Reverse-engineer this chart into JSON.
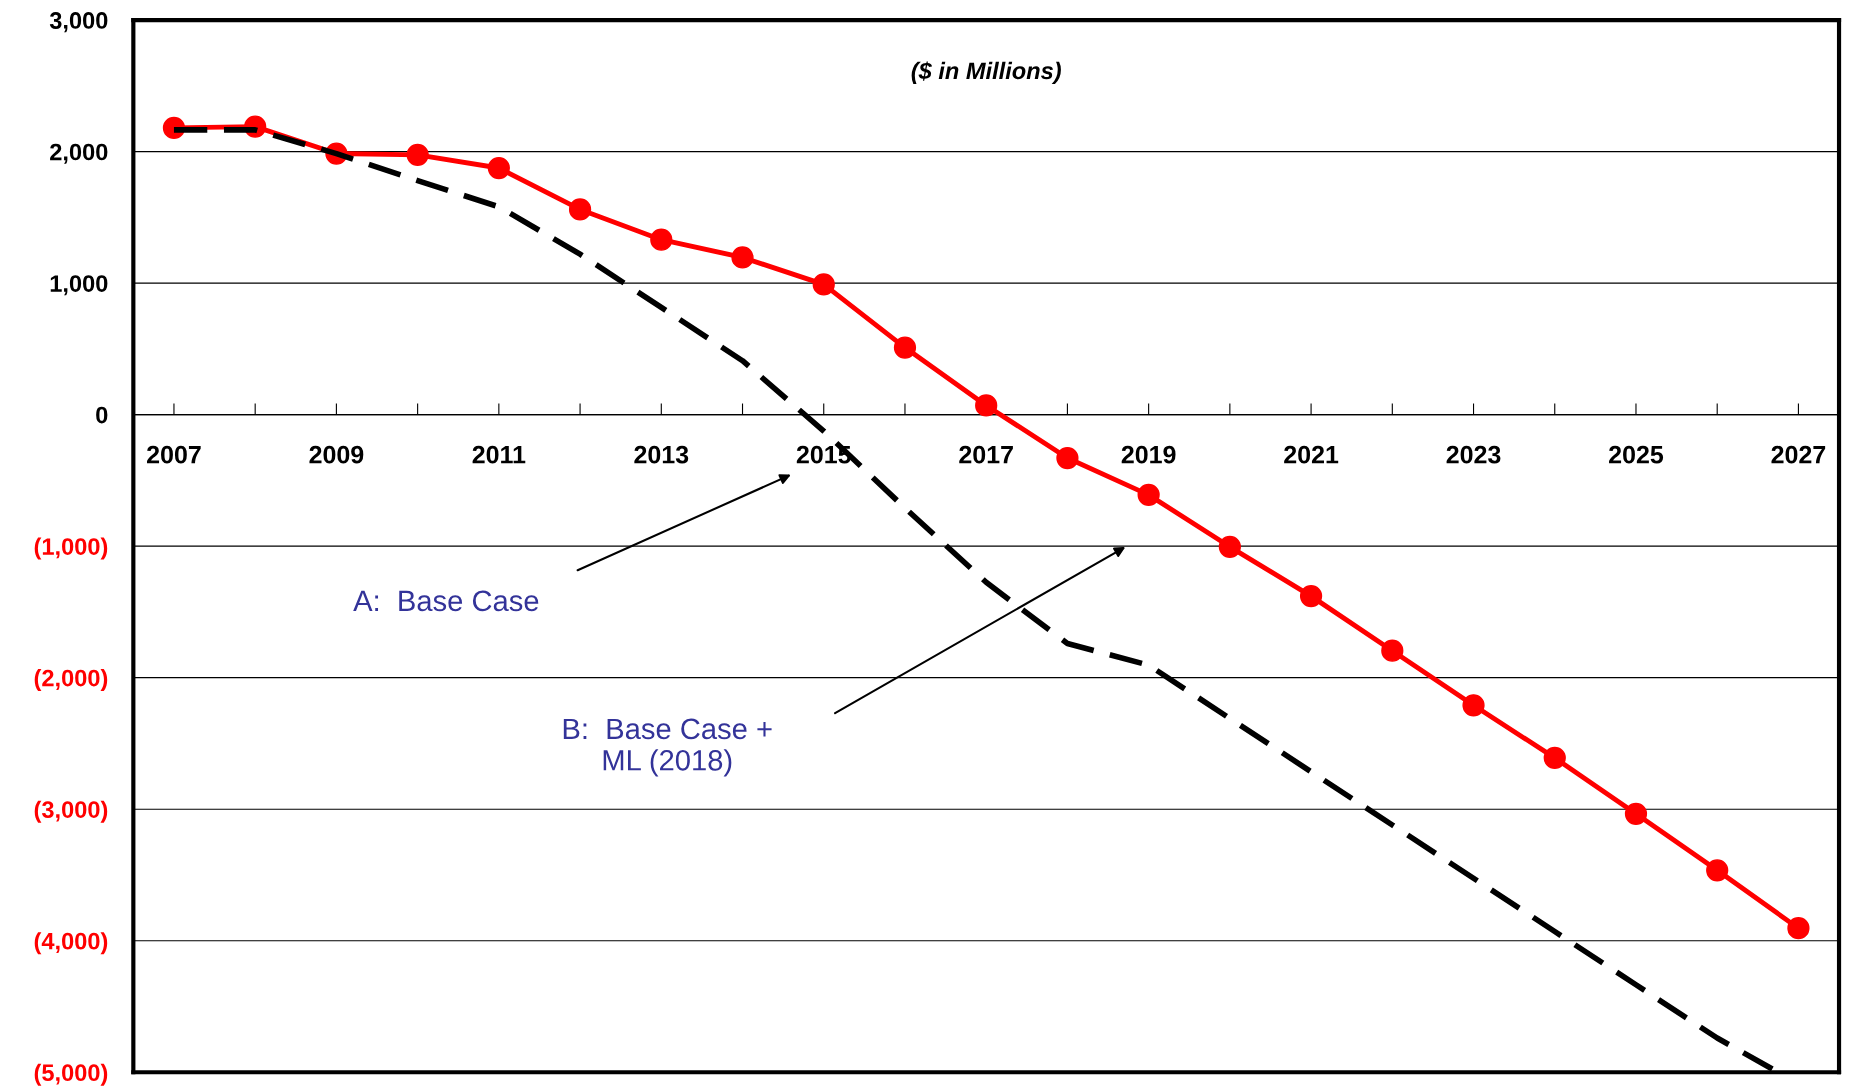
{
  "chart_data": {
    "type": "line",
    "x": [
      2007,
      2008,
      2009,
      2010,
      2011,
      2012,
      2013,
      2014,
      2015,
      2016,
      2017,
      2018,
      2019,
      2020,
      2021,
      2022,
      2023,
      2024,
      2025,
      2026,
      2027
    ],
    "series": [
      {
        "color": "#ff0000",
        "marker": "circle",
        "line_style": "solid",
        "values": [
          2180,
          2190,
          1985,
          1975,
          1875,
          1560,
          1330,
          1195,
          990,
          510,
          70,
          -330,
          -610,
          -1005,
          -1380,
          -1795,
          -2210,
          -2610,
          -3035,
          -3465,
          -3905
        ]
      },
      {
        "color": "#000000",
        "marker": "none",
        "line_style": "dashed",
        "x": [
          2007,
          2008,
          2009,
          2010,
          2011,
          2012,
          2013,
          2014,
          2015,
          2016,
          2017,
          2018,
          2019,
          2020,
          2021,
          2022,
          2023,
          2024,
          2025,
          2026,
          2026.75
        ],
        "values": [
          2165,
          2165,
          1985,
          1780,
          1580,
          1220,
          815,
          410,
          -125,
          -710,
          -1275,
          -1740,
          -1905,
          -2310,
          -2715,
          -3120,
          -3525,
          -3930,
          -4335,
          -4740,
          -5000
        ]
      }
    ],
    "xlim": [
      2006.5,
      2027.5
    ],
    "xticks": [
      2007,
      {
        "value": 2008,
        "label": null
      },
      2009,
      {
        "value": 2010,
        "label": null
      },
      2011,
      {
        "value": 2012,
        "label": null
      },
      2013,
      {
        "value": 2014,
        "label": null
      },
      2015,
      {
        "value": 2016,
        "label": null
      },
      2017,
      {
        "value": 2018,
        "label": null
      },
      2019,
      {
        "value": 2020,
        "label": null
      },
      2021,
      {
        "value": 2022,
        "label": null
      },
      2023,
      {
        "value": 2024,
        "label": null
      },
      2025,
      {
        "value": 2026,
        "label": null
      },
      2027
    ],
    "ylim": [
      -5000,
      3000
    ],
    "yticks": [
      {
        "value": 3000,
        "label": "3,000"
      },
      {
        "value": 2000,
        "label": "2,000"
      },
      {
        "value": 1000,
        "label": "1,000"
      },
      0,
      {
        "value": -1000,
        "label": "(1,000)"
      },
      {
        "value": -2000,
        "label": "(2,000)"
      },
      {
        "value": -3000,
        "label": "(3,000)"
      },
      {
        "value": -4000,
        "label": "(4,000)"
      },
      {
        "value": -5000,
        "label": "(5,000)"
      }
    ],
    "grid": "y",
    "legend": false,
    "annotations": [
      "($ in Millions)",
      "A:  Base Case",
      "B:  Base Case +\nML (2018)"
    ]
  }
}
